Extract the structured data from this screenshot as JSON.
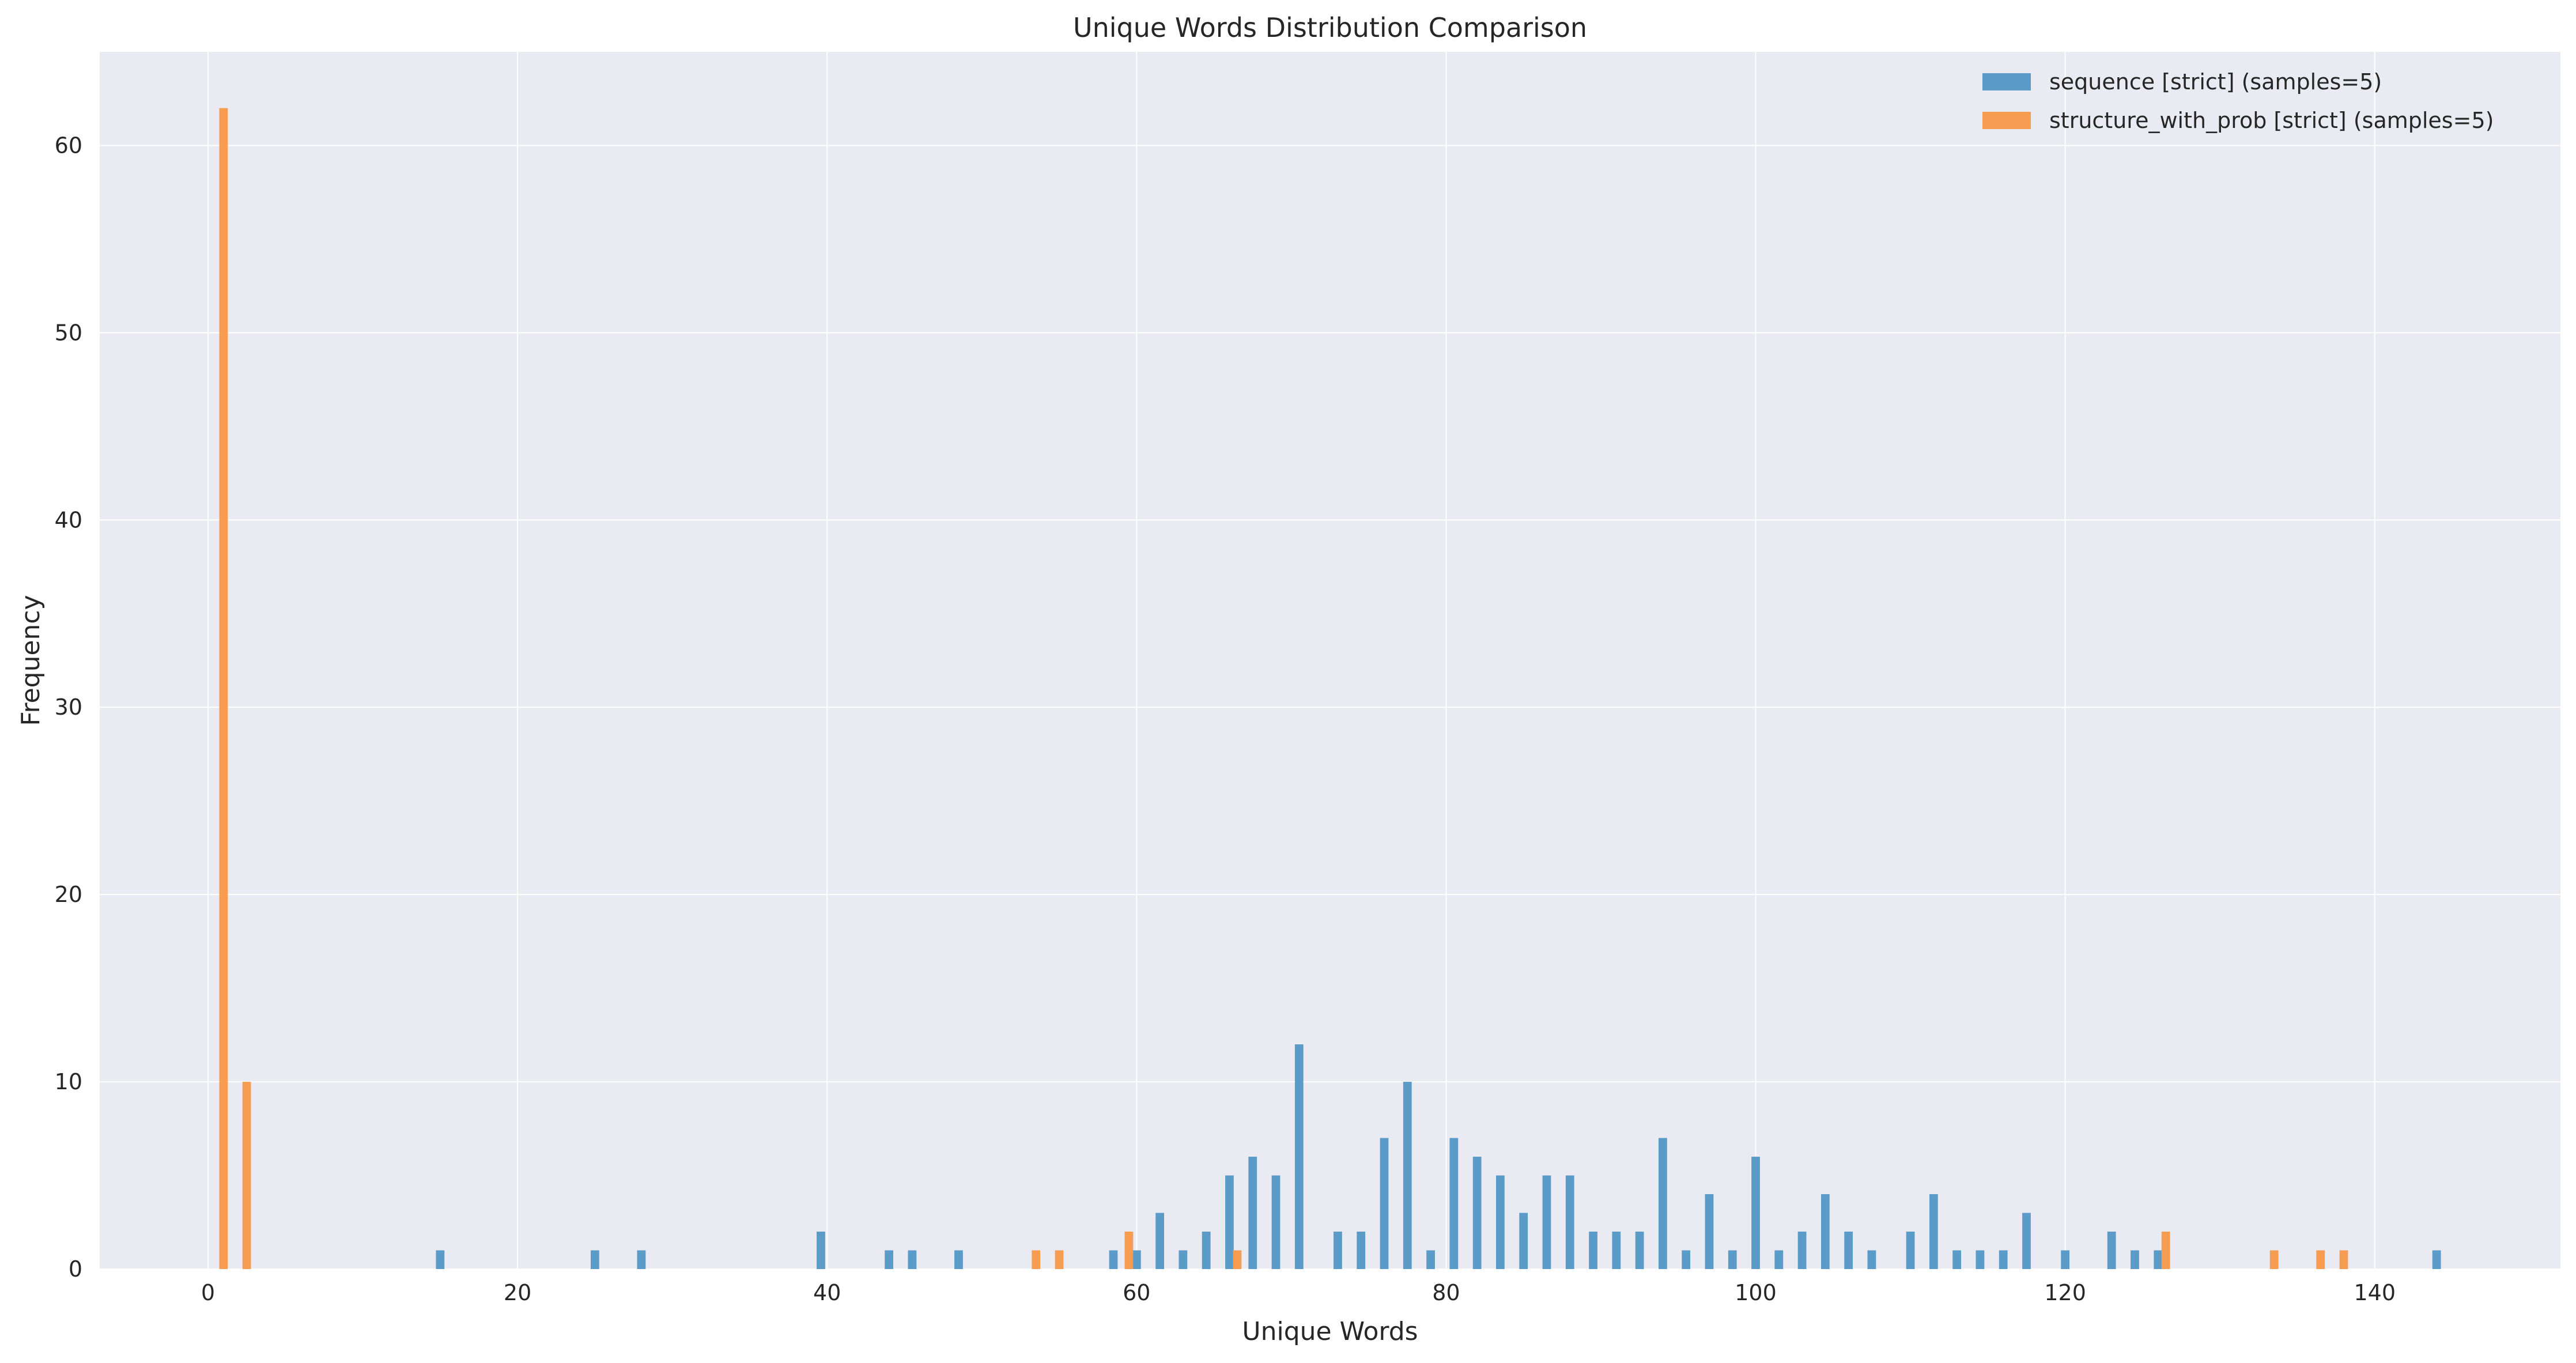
{
  "chart_data": {
    "type": "bar",
    "title": "Unique Words Distribution Comparison",
    "xlabel": "Unique Words",
    "ylabel": "Frequency",
    "xlim": [
      -7,
      152
    ],
    "ylim": [
      0,
      65
    ],
    "xticks": [
      0,
      20,
      40,
      60,
      80,
      100,
      120,
      140
    ],
    "yticks": [
      0,
      10,
      20,
      30,
      40,
      50,
      60
    ],
    "grid": true,
    "legend_position": "top-right",
    "series": [
      {
        "name": "sequence [strict] (samples=5)",
        "color": "#5b9bc8",
        "points": [
          [
            15,
            1
          ],
          [
            25,
            1
          ],
          [
            28,
            1
          ],
          [
            39.6,
            2
          ],
          [
            44,
            1
          ],
          [
            45.5,
            1
          ],
          [
            48.5,
            1
          ],
          [
            58.5,
            1
          ],
          [
            60,
            1
          ],
          [
            61.5,
            3
          ],
          [
            63,
            1
          ],
          [
            64.5,
            2
          ],
          [
            66,
            5
          ],
          [
            67.5,
            6
          ],
          [
            69,
            5
          ],
          [
            70.5,
            12
          ],
          [
            73,
            2
          ],
          [
            74.5,
            2
          ],
          [
            76,
            7
          ],
          [
            77.5,
            10
          ],
          [
            79,
            1
          ],
          [
            80.5,
            7
          ],
          [
            82,
            6
          ],
          [
            83.5,
            5
          ],
          [
            85,
            3
          ],
          [
            86.5,
            5
          ],
          [
            88,
            5
          ],
          [
            89.5,
            2
          ],
          [
            91,
            2
          ],
          [
            92.5,
            2
          ],
          [
            94,
            7
          ],
          [
            95.5,
            1
          ],
          [
            97,
            4
          ],
          [
            98.5,
            1
          ],
          [
            100,
            6
          ],
          [
            101.5,
            1
          ],
          [
            103,
            2
          ],
          [
            104.5,
            4
          ],
          [
            106,
            2
          ],
          [
            107.5,
            1
          ],
          [
            110,
            2
          ],
          [
            111.5,
            4
          ],
          [
            113,
            1
          ],
          [
            114.5,
            1
          ],
          [
            116,
            1
          ],
          [
            117.5,
            3
          ],
          [
            120,
            1
          ],
          [
            123,
            2
          ],
          [
            124.5,
            1
          ],
          [
            126,
            1
          ],
          [
            144,
            1
          ]
        ]
      },
      {
        "name": "structure_with_prob [strict] (samples=5)",
        "color": "#f69d52",
        "points": [
          [
            1,
            62
          ],
          [
            2.5,
            10
          ],
          [
            53.5,
            1
          ],
          [
            55,
            1
          ],
          [
            59.5,
            2
          ],
          [
            66.5,
            1
          ],
          [
            126.5,
            2
          ],
          [
            133.5,
            1
          ],
          [
            136.5,
            1
          ],
          [
            138,
            1
          ]
        ]
      }
    ]
  }
}
